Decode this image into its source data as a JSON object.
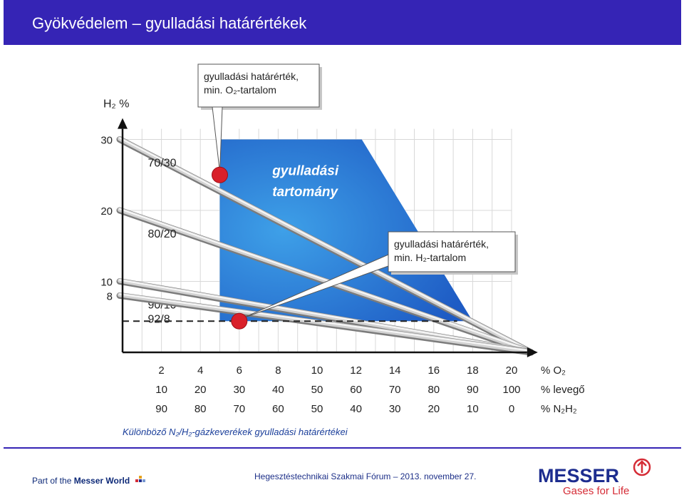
{
  "header": {
    "title": "Gyökvédelem – gyulladási határértékek"
  },
  "chart_data": {
    "type": "line",
    "y_axis_label": "H₂ %",
    "y_ticks": [
      "8",
      "10",
      "20",
      "30"
    ],
    "ylim": [
      0,
      32
    ],
    "xlim": [
      0,
      21
    ],
    "x_rows": [
      {
        "label": "% O₂",
        "values": [
          "2",
          "4",
          "6",
          "8",
          "10",
          "12",
          "14",
          "16",
          "18",
          "20"
        ]
      },
      {
        "label": "% levegő",
        "values": [
          "10",
          "20",
          "30",
          "40",
          "50",
          "60",
          "70",
          "80",
          "90",
          "100"
        ]
      },
      {
        "label": "% N₂H₂",
        "values": [
          "90",
          "80",
          "70",
          "60",
          "50",
          "40",
          "30",
          "20",
          "10",
          "0"
        ]
      }
    ],
    "series": [
      {
        "name": "70/30",
        "points": [
          [
            0,
            30
          ],
          [
            21,
            0
          ]
        ]
      },
      {
        "name": "80/20",
        "points": [
          [
            0,
            20
          ],
          [
            21,
            0
          ]
        ]
      },
      {
        "name": "90/10",
        "points": [
          [
            0,
            10
          ],
          [
            21,
            0
          ]
        ]
      },
      {
        "name": "92/8",
        "points": [
          [
            0,
            8
          ],
          [
            21,
            0
          ]
        ]
      }
    ],
    "ignition_region": {
      "label_line1": "gyulladási",
      "label_line2": "tartomány",
      "polygon": [
        [
          5,
          30
        ],
        [
          12.3,
          30
        ],
        [
          18,
          4.4
        ],
        [
          5,
          4.4
        ]
      ]
    },
    "limit_points": [
      {
        "x": 5,
        "y": 25,
        "callout_line1": "gyulladási határérték,",
        "callout_line2": "min. O₂-tartalom"
      },
      {
        "x": 6,
        "y": 4.4,
        "callout_line1": "gyulladási határérték,",
        "callout_line2": "min. H₂-tartalom"
      }
    ],
    "dashed_level": 4.4,
    "caption": "Különböző N₂/H₂-gázkeverékek gyulladási határértékei",
    "colors": {
      "region": "#2a6fd1",
      "region_light": "#3ea0e8",
      "marker": "#d9202a",
      "arrow": "#111111"
    }
  },
  "footer": {
    "left_prefix": "Part of the ",
    "left_bold": "Messer World",
    "center": "Hegesztéstechnikai Szakmai Fórum – 2013. november 27.",
    "logo_word": "MESSER",
    "logo_tagline": "Gases for Life",
    "colors": {
      "navy": "#1d2d8f",
      "red": "#d52c36"
    }
  }
}
